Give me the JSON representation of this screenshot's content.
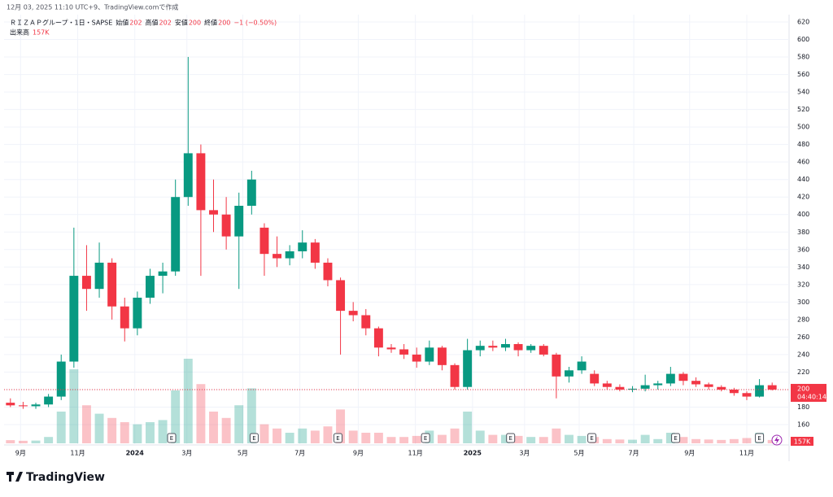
{
  "chart_data": {
    "type": "candlestick",
    "created_note": "12月 03, 2025 11:10 UTC+9、TradingView.comで作成",
    "symbol": "ＲＩＺＡＰグループ・1日・SAPSE",
    "ohlc_legend": [
      {
        "label": "始値",
        "value": "202"
      },
      {
        "label": "高値",
        "value": "202"
      },
      {
        "label": "安値",
        "value": "200"
      },
      {
        "label": "終値",
        "value": "200"
      }
    ],
    "change": "−1 (−0.50%)",
    "volume_title": "出来高",
    "volume_last_label": "157K",
    "countdown": "04:40:14",
    "brand": "TradingView",
    "up_color": "#089981",
    "down_color": "#f23645",
    "grid": true,
    "ylim": [
      160,
      620
    ],
    "yticks": [
      160,
      180,
      200,
      220,
      240,
      260,
      280,
      300,
      320,
      340,
      360,
      380,
      400,
      420,
      440,
      460,
      480,
      500,
      520,
      540,
      560,
      580,
      600,
      620
    ],
    "xlim": [
      -0.5,
      60.5
    ],
    "xticks": [
      {
        "value": 0.8,
        "label": "9月"
      },
      {
        "value": 5.3,
        "label": "11月"
      },
      {
        "value": 9.8,
        "label": "2024"
      },
      {
        "value": 13.9,
        "label": "3月"
      },
      {
        "value": 18.3,
        "label": "5月"
      },
      {
        "value": 22.8,
        "label": "7月"
      },
      {
        "value": 27.4,
        "label": "9月"
      },
      {
        "value": 31.9,
        "label": "11月"
      },
      {
        "value": 36.4,
        "label": "2025"
      },
      {
        "value": 40.5,
        "label": "3月"
      },
      {
        "value": 44.8,
        "label": "5月"
      },
      {
        "value": 49.1,
        "label": "7月"
      },
      {
        "value": 53.5,
        "label": "9月"
      },
      {
        "value": 58.0,
        "label": "11月"
      }
    ],
    "earnings": [
      {
        "label": "E",
        "at": 12.7
      },
      {
        "label": "E",
        "at": 19.2
      },
      {
        "label": "E",
        "at": 25.8
      },
      {
        "label": "E",
        "at": 32.7
      },
      {
        "label": "E",
        "at": 39.4
      },
      {
        "label": "E",
        "at": 45.8
      },
      {
        "label": "E",
        "at": 52.4
      },
      {
        "label": "E",
        "at": 59.0
      }
    ],
    "candles": [
      {
        "o": 185,
        "h": 190,
        "l": 180,
        "c": 182
      },
      {
        "o": 182,
        "h": 186,
        "l": 178,
        "c": 181
      },
      {
        "o": 181,
        "h": 185,
        "l": 178,
        "c": 183
      },
      {
        "o": 183,
        "h": 195,
        "l": 180,
        "c": 192
      },
      {
        "o": 192,
        "h": 240,
        "l": 188,
        "c": 232
      },
      {
        "o": 232,
        "h": 385,
        "l": 225,
        "c": 330
      },
      {
        "o": 330,
        "h": 365,
        "l": 290,
        "c": 315
      },
      {
        "o": 315,
        "h": 368,
        "l": 305,
        "c": 345
      },
      {
        "o": 345,
        "h": 350,
        "l": 280,
        "c": 295
      },
      {
        "o": 295,
        "h": 305,
        "l": 255,
        "c": 270
      },
      {
        "o": 270,
        "h": 312,
        "l": 262,
        "c": 305
      },
      {
        "o": 305,
        "h": 338,
        "l": 298,
        "c": 330
      },
      {
        "o": 330,
        "h": 345,
        "l": 310,
        "c": 335
      },
      {
        "o": 335,
        "h": 440,
        "l": 330,
        "c": 420
      },
      {
        "o": 420,
        "h": 580,
        "l": 410,
        "c": 470
      },
      {
        "o": 470,
        "h": 480,
        "l": 330,
        "c": 405
      },
      {
        "o": 405,
        "h": 440,
        "l": 380,
        "c": 400
      },
      {
        "o": 400,
        "h": 420,
        "l": 360,
        "c": 375
      },
      {
        "o": 375,
        "h": 425,
        "l": 315,
        "c": 410
      },
      {
        "o": 410,
        "h": 450,
        "l": 400,
        "c": 440
      },
      {
        "o": 385,
        "h": 390,
        "l": 330,
        "c": 355
      },
      {
        "o": 355,
        "h": 375,
        "l": 340,
        "c": 350
      },
      {
        "o": 350,
        "h": 365,
        "l": 342,
        "c": 358
      },
      {
        "o": 358,
        "h": 382,
        "l": 350,
        "c": 368
      },
      {
        "o": 368,
        "h": 372,
        "l": 338,
        "c": 345
      },
      {
        "o": 345,
        "h": 350,
        "l": 318,
        "c": 325
      },
      {
        "o": 325,
        "h": 328,
        "l": 240,
        "c": 290
      },
      {
        "o": 290,
        "h": 300,
        "l": 278,
        "c": 285
      },
      {
        "o": 285,
        "h": 292,
        "l": 262,
        "c": 270
      },
      {
        "o": 270,
        "h": 272,
        "l": 238,
        "c": 248
      },
      {
        "o": 248,
        "h": 252,
        "l": 242,
        "c": 246
      },
      {
        "o": 246,
        "h": 252,
        "l": 235,
        "c": 240
      },
      {
        "o": 240,
        "h": 248,
        "l": 225,
        "c": 232
      },
      {
        "o": 232,
        "h": 256,
        "l": 228,
        "c": 248
      },
      {
        "o": 248,
        "h": 250,
        "l": 222,
        "c": 228
      },
      {
        "o": 228,
        "h": 230,
        "l": 200,
        "c": 203
      },
      {
        "o": 203,
        "h": 258,
        "l": 200,
        "c": 245
      },
      {
        "o": 245,
        "h": 256,
        "l": 238,
        "c": 250
      },
      {
        "o": 250,
        "h": 256,
        "l": 244,
        "c": 248
      },
      {
        "o": 248,
        "h": 258,
        "l": 244,
        "c": 252
      },
      {
        "o": 252,
        "h": 254,
        "l": 238,
        "c": 245
      },
      {
        "o": 245,
        "h": 252,
        "l": 242,
        "c": 250
      },
      {
        "o": 250,
        "h": 252,
        "l": 238,
        "c": 240
      },
      {
        "o": 240,
        "h": 242,
        "l": 190,
        "c": 215
      },
      {
        "o": 215,
        "h": 226,
        "l": 208,
        "c": 222
      },
      {
        "o": 222,
        "h": 238,
        "l": 218,
        "c": 232
      },
      {
        "o": 218,
        "h": 222,
        "l": 204,
        "c": 207
      },
      {
        "o": 207,
        "h": 210,
        "l": 200,
        "c": 203
      },
      {
        "o": 203,
        "h": 206,
        "l": 198,
        "c": 200
      },
      {
        "o": 200,
        "h": 204,
        "l": 197,
        "c": 201
      },
      {
        "o": 201,
        "h": 217,
        "l": 198,
        "c": 205
      },
      {
        "o": 205,
        "h": 210,
        "l": 200,
        "c": 207
      },
      {
        "o": 207,
        "h": 226,
        "l": 204,
        "c": 218
      },
      {
        "o": 218,
        "h": 220,
        "l": 205,
        "c": 210
      },
      {
        "o": 210,
        "h": 214,
        "l": 203,
        "c": 206
      },
      {
        "o": 206,
        "h": 208,
        "l": 200,
        "c": 203
      },
      {
        "o": 203,
        "h": 205,
        "l": 198,
        "c": 200
      },
      {
        "o": 200,
        "h": 202,
        "l": 193,
        "c": 196
      },
      {
        "o": 196,
        "h": 198,
        "l": 188,
        "c": 192
      },
      {
        "o": 192,
        "h": 212,
        "l": 191,
        "c": 205
      },
      {
        "o": 205,
        "h": 208,
        "l": 199,
        "c": 200
      }
    ],
    "volume_lim": [
      0,
      5000
    ],
    "volume": [
      150,
      120,
      130,
      300,
      1500,
      3500,
      1800,
      1400,
      1200,
      1000,
      900,
      1000,
      1100,
      2500,
      4000,
      2800,
      1500,
      1200,
      1800,
      2600,
      900,
      700,
      500,
      700,
      600,
      800,
      1600,
      600,
      500,
      500,
      300,
      300,
      350,
      600,
      400,
      700,
      1500,
      600,
      400,
      400,
      350,
      300,
      300,
      700,
      400,
      350,
      300,
      200,
      180,
      170,
      400,
      200,
      500,
      300,
      200,
      180,
      160,
      200,
      250,
      500,
      157
    ]
  }
}
